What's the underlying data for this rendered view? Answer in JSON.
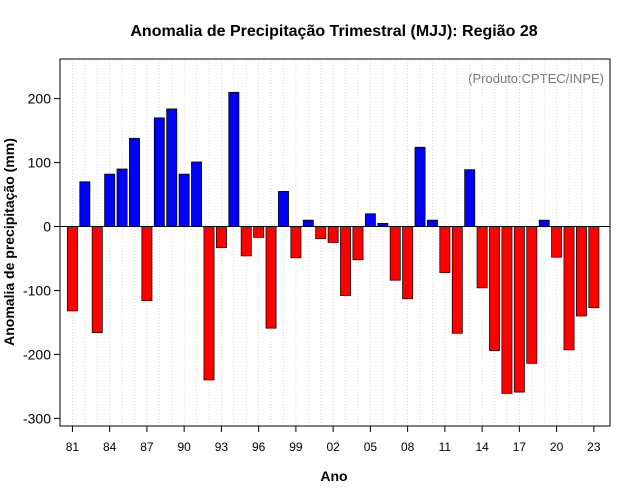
{
  "chart_data": {
    "type": "bar",
    "title": "Anomalia de Precipitação Trimestral (MJJ): Região 28",
    "subtitle": "(Produto:CPTEC/INPE)",
    "xlabel": "Ano",
    "ylabel": "Anomalia de precipitação (mm)",
    "ylim": [
      -312,
      262
    ],
    "yticks": [
      200,
      100,
      0,
      -100,
      -200,
      -300
    ],
    "tick_labels": [
      "81",
      "84",
      "87",
      "90",
      "93",
      "96",
      "99",
      "02",
      "05",
      "08",
      "11",
      "14",
      "17",
      "20",
      "23"
    ],
    "tick_positions": [
      1981,
      1984,
      1987,
      1990,
      1993,
      1996,
      1999,
      2002,
      2005,
      2008,
      2011,
      2014,
      2017,
      2020,
      2023
    ],
    "years": [
      1981,
      1982,
      1983,
      1984,
      1985,
      1986,
      1987,
      1988,
      1989,
      1990,
      1991,
      1992,
      1993,
      1994,
      1995,
      1996,
      1997,
      1998,
      1999,
      2000,
      2001,
      2002,
      2003,
      2004,
      2005,
      2006,
      2007,
      2008,
      2009,
      2010,
      2011,
      2012,
      2013,
      2014,
      2015,
      2016,
      2017,
      2018,
      2019,
      2020,
      2021,
      2022,
      2023
    ],
    "values": [
      -132,
      70,
      -166,
      82,
      90,
      138,
      -116,
      170,
      184,
      82,
      101,
      -240,
      -33,
      210,
      -46,
      -17,
      -159,
      55,
      -49,
      10,
      -19,
      -25,
      -108,
      -52,
      20,
      5,
      -84,
      -113,
      124,
      10,
      -72,
      -167,
      89,
      -96,
      -194,
      -261,
      -259,
      -214,
      10,
      -48,
      -193,
      -140,
      -127
    ],
    "grid": "vertical-dotted",
    "positive_color": "#0000ff",
    "negative_color": "#ff0000"
  }
}
